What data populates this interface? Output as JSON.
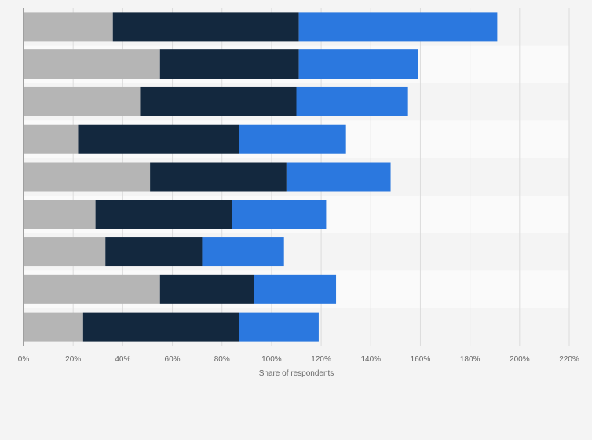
{
  "chart_data": {
    "type": "bar",
    "orientation": "horizontal",
    "stacked": true,
    "title": "",
    "xlabel": "Share of respondents",
    "ylabel": "",
    "xlim": [
      0,
      220
    ],
    "x_ticks": [
      "0%",
      "20%",
      "40%",
      "60%",
      "80%",
      "100%",
      "120%",
      "140%",
      "160%",
      "180%",
      "200%",
      "220%"
    ],
    "categories": [
      "",
      "",
      "",
      "",
      "",
      "",
      "",
      "",
      ""
    ],
    "series": [
      {
        "color": "#b5b5b5",
        "values": [
          36,
          55,
          47,
          22,
          51,
          29,
          33,
          55,
          24
        ]
      },
      {
        "color": "#13283e",
        "values": [
          75,
          56,
          63,
          65,
          55,
          55,
          39,
          38,
          63
        ]
      },
      {
        "color": "#2b78df",
        "values": [
          80,
          48,
          45,
          43,
          42,
          38,
          33,
          33,
          32
        ]
      }
    ],
    "grid": true,
    "legend": "none"
  }
}
